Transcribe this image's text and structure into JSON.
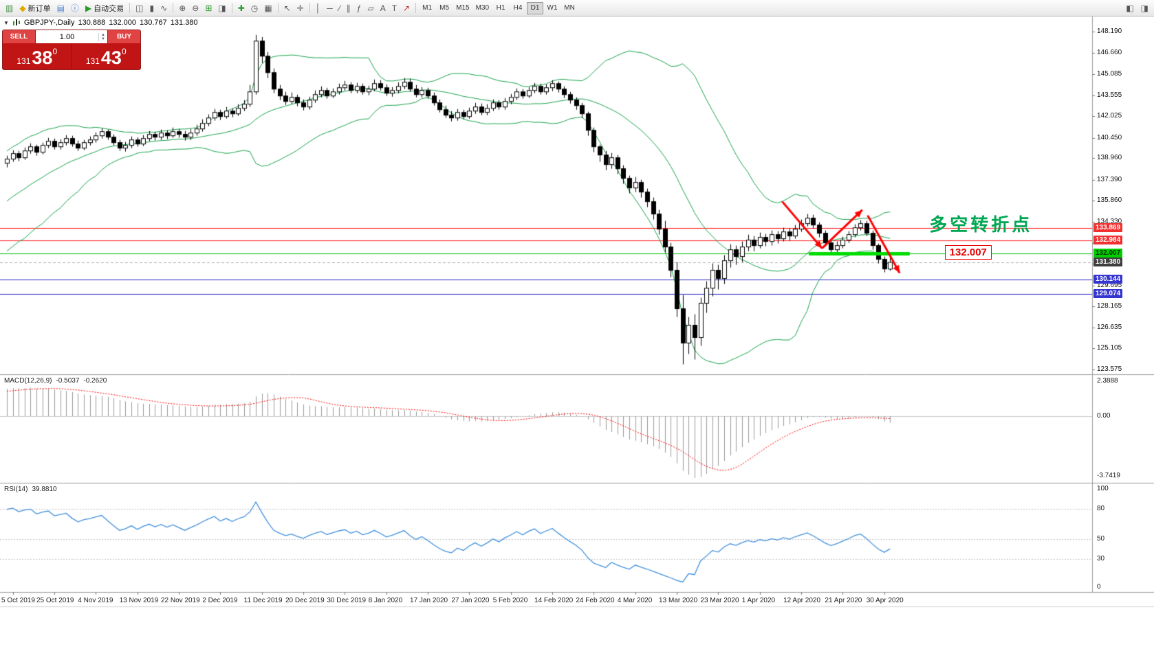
{
  "app": {
    "toolbar": {
      "buttons": [
        {
          "name": "new-chart-button",
          "glyph": "▥",
          "color": "#3f8f3f"
        },
        {
          "name": "new-order-button",
          "glyph": "◆",
          "color": "#e0a800",
          "label": "新订单"
        },
        {
          "name": "profiles-button",
          "glyph": "▤",
          "color": "#4a7fd0"
        },
        {
          "name": "data-window-button",
          "glyph": "ⓘ",
          "color": "#4a7fd0"
        },
        {
          "name": "autotrading-button",
          "glyph": "▶",
          "color": "#2a9a2a",
          "label": "自动交易"
        },
        {
          "sep": true
        },
        {
          "name": "bar-chart-mode-button",
          "glyph": "◫"
        },
        {
          "name": "candlestick-mode-button",
          "glyph": "▮"
        },
        {
          "name": "line-chart-mode-button",
          "glyph": "∿"
        },
        {
          "sep": true
        },
        {
          "name": "zoom-in-button",
          "glyph": "⊕"
        },
        {
          "name": "zoom-out-button",
          "glyph": "⊖"
        },
        {
          "name": "auto-scroll-button",
          "glyph": "⊞",
          "color": "#2a9a2a"
        },
        {
          "name": "chart-shift-button",
          "glyph": "◨"
        },
        {
          "sep": true
        },
        {
          "name": "indicators-button",
          "glyph": "✚",
          "color": "#2a9a2a"
        },
        {
          "name": "periods-button",
          "glyph": "◷"
        },
        {
          "name": "templates-button",
          "glyph": "▦"
        },
        {
          "sep": true
        },
        {
          "name": "cursor-button",
          "glyph": "↖"
        },
        {
          "name": "crosshair-button",
          "glyph": "✛"
        },
        {
          "sep": true
        },
        {
          "name": "vertical-line-button",
          "glyph": "│"
        },
        {
          "name": "horizontal-line-button",
          "glyph": "─"
        },
        {
          "name": "trendline-button",
          "glyph": "∕"
        },
        {
          "name": "channel-button",
          "glyph": "∥"
        },
        {
          "name": "fibonacci-button",
          "glyph": "ƒ"
        },
        {
          "name": "shapes-button",
          "glyph": "▱"
        },
        {
          "name": "text-button",
          "glyph": "A"
        },
        {
          "name": "label-button",
          "glyph": "T"
        },
        {
          "name": "arrows-button",
          "glyph": "↗",
          "color": "#c03030"
        },
        {
          "sep": true
        }
      ],
      "timeframes": {
        "items": [
          "M1",
          "M5",
          "M15",
          "M30",
          "H1",
          "H4",
          "D1",
          "W1",
          "MN"
        ],
        "active": "D1"
      },
      "right_buttons": [
        {
          "name": "search-button",
          "glyph": "◧"
        },
        {
          "name": "window-list-button",
          "glyph": "◨"
        }
      ]
    }
  },
  "chart_header": {
    "collapse_icon": "▼",
    "symbol_period": "GBPJPY-,Daily",
    "open": "130.888",
    "high": "132.000",
    "low": "130.767",
    "close": "131.380"
  },
  "trade_panel": {
    "sell_label": "SELL",
    "buy_label": "BUY",
    "lot_value": "1.00",
    "stepper_up": "▲",
    "stepper_down": "▼",
    "sell_price_prefix": "131",
    "sell_price_big": "38",
    "sell_price_sup": "0",
    "buy_price_prefix": "131",
    "buy_price_big": "43",
    "buy_price_sup": "0"
  },
  "indicators": {
    "macd": {
      "name": "MACD(12,26,9)",
      "value_main": "-0.5037",
      "value_signal": "-0.2620",
      "axis_labels": [
        "2.3888",
        "0.00",
        "-3.7419"
      ]
    },
    "rsi": {
      "name": "RSI(14)",
      "value": "39.8810",
      "levels": [
        80,
        50,
        30
      ],
      "axis_labels": [
        {
          "value": 100,
          "label": "100"
        },
        {
          "value": 80,
          "label": "80"
        },
        {
          "value": 50,
          "label": "50"
        },
        {
          "value": 30,
          "label": "30"
        },
        {
          "value": 0,
          "label": "0"
        }
      ]
    }
  },
  "chart_data": {
    "type": "candlestick",
    "title": "GBPJPY-,Daily",
    "symbol": "GBPJPY",
    "timeframe": "Daily",
    "y_range": [
      123.575,
      148.19
    ],
    "y_axis_labels": [
      "148.190",
      "146.660",
      "145.085",
      "143.555",
      "142.025",
      "140.450",
      "138.960",
      "137.390",
      "135.860",
      "134.330",
      "132.800",
      "131.270",
      "129.695",
      "128.165",
      "126.635",
      "125.105",
      "123.575"
    ],
    "x_axis": {
      "first_bar_index": 1,
      "bar_step": 7,
      "labels": [
        "5 Oct 2019",
        "25 Oct 2019",
        "4 Nov 2019",
        "13 Nov 2019",
        "22 Nov 2019",
        "2 Dec 2019",
        "11 Dec 2019",
        "20 Dec 2019",
        "30 Dec 2019",
        "8 Jan 2020",
        "17 Jan 2020",
        "27 Jan 2020",
        "5 Feb 2020",
        "14 Feb 2020",
        "24 Feb 2020",
        "4 Mar 2020",
        "13 Mar 2020",
        "23 Mar 2020",
        "1 Apr 2020",
        "12 Apr 2020",
        "21 Apr 2020",
        "30 Apr 2020"
      ]
    },
    "pre_closes": [
      129.8,
      130.3,
      129.9,
      130.6,
      131.2,
      130.8,
      131.5,
      132.1,
      131.7,
      132.4,
      133.0,
      132.6,
      133.3,
      133.9,
      133.5,
      134.2,
      134.8,
      134.4,
      135.1,
      135.7,
      135.3,
      136.0,
      136.6,
      136.2,
      136.9,
      137.5,
      137.1,
      137.8,
      138.4,
      138.6
    ],
    "candles": [
      [
        138.6,
        139.15,
        138.3,
        138.9
      ],
      [
        138.9,
        139.55,
        138.7,
        139.3
      ],
      [
        139.3,
        139.5,
        138.75,
        139.0
      ],
      [
        139.0,
        139.75,
        138.85,
        139.5
      ],
      [
        139.5,
        140.05,
        139.3,
        139.8
      ],
      [
        139.8,
        139.95,
        139.15,
        139.4
      ],
      [
        139.4,
        140.1,
        139.25,
        139.9
      ],
      [
        139.9,
        140.45,
        139.7,
        140.2
      ],
      [
        140.2,
        140.4,
        139.6,
        139.8
      ],
      [
        139.8,
        140.35,
        139.6,
        140.1
      ],
      [
        140.1,
        140.65,
        139.9,
        140.4
      ],
      [
        140.4,
        140.6,
        139.8,
        140.0
      ],
      [
        140.0,
        140.25,
        139.5,
        139.7
      ],
      [
        139.7,
        140.3,
        139.55,
        140.1
      ],
      [
        140.1,
        140.55,
        139.9,
        140.3
      ],
      [
        140.3,
        140.85,
        140.1,
        140.6
      ],
      [
        140.6,
        141.15,
        140.4,
        140.9
      ],
      [
        140.9,
        141.05,
        140.3,
        140.5
      ],
      [
        140.5,
        140.7,
        139.9,
        140.1
      ],
      [
        140.1,
        140.3,
        139.5,
        139.7
      ],
      [
        139.7,
        140.15,
        139.45,
        139.9
      ],
      [
        139.9,
        140.55,
        139.7,
        140.3
      ],
      [
        140.3,
        140.5,
        139.8,
        140.0
      ],
      [
        140.0,
        140.65,
        139.85,
        140.4
      ],
      [
        140.4,
        140.95,
        140.2,
        140.7
      ],
      [
        140.7,
        140.9,
        140.25,
        140.5
      ],
      [
        140.5,
        141.05,
        140.3,
        140.8
      ],
      [
        140.8,
        141.0,
        140.35,
        140.6
      ],
      [
        140.6,
        141.2,
        140.45,
        140.9
      ],
      [
        140.9,
        141.1,
        140.45,
        140.7
      ],
      [
        140.7,
        140.95,
        140.25,
        140.5
      ],
      [
        140.5,
        141.1,
        140.3,
        140.8
      ],
      [
        140.8,
        141.4,
        140.6,
        141.1
      ],
      [
        141.1,
        141.8,
        140.9,
        141.5
      ],
      [
        141.5,
        142.15,
        141.3,
        141.9
      ],
      [
        141.9,
        142.55,
        141.7,
        142.3
      ],
      [
        142.3,
        142.5,
        141.75,
        142.0
      ],
      [
        142.0,
        142.7,
        141.85,
        142.4
      ],
      [
        142.4,
        142.6,
        141.95,
        142.2
      ],
      [
        142.2,
        142.9,
        142.05,
        142.6
      ],
      [
        142.6,
        143.2,
        142.4,
        142.9
      ],
      [
        142.9,
        144.3,
        142.7,
        143.8
      ],
      [
        143.8,
        147.95,
        143.6,
        147.5
      ],
      [
        147.5,
        147.8,
        145.9,
        146.4
      ],
      [
        146.4,
        146.7,
        144.8,
        145.2
      ],
      [
        145.2,
        145.5,
        143.7,
        144.0
      ],
      [
        144.0,
        144.3,
        143.2,
        143.5
      ],
      [
        143.5,
        143.8,
        142.85,
        143.1
      ],
      [
        143.1,
        143.75,
        142.9,
        143.4
      ],
      [
        143.4,
        143.6,
        142.75,
        143.0
      ],
      [
        143.0,
        143.25,
        142.45,
        142.7
      ],
      [
        142.7,
        143.45,
        142.5,
        143.2
      ],
      [
        143.2,
        143.9,
        143.0,
        143.6
      ],
      [
        143.6,
        144.2,
        143.4,
        143.9
      ],
      [
        143.9,
        144.1,
        143.3,
        143.5
      ],
      [
        143.5,
        144.05,
        143.35,
        143.8
      ],
      [
        143.8,
        144.4,
        143.6,
        144.1
      ],
      [
        144.1,
        144.6,
        143.9,
        144.3
      ],
      [
        144.3,
        144.5,
        143.7,
        143.9
      ],
      [
        143.9,
        144.45,
        143.7,
        144.2
      ],
      [
        144.2,
        144.4,
        143.6,
        143.8
      ],
      [
        143.8,
        144.25,
        143.55,
        144.0
      ],
      [
        144.0,
        144.7,
        143.85,
        144.4
      ],
      [
        144.4,
        144.65,
        143.9,
        144.1
      ],
      [
        144.1,
        144.35,
        143.5,
        143.7
      ],
      [
        143.7,
        144.15,
        143.45,
        143.9
      ],
      [
        143.9,
        144.5,
        143.7,
        144.2
      ],
      [
        144.2,
        144.8,
        144.0,
        144.5
      ],
      [
        144.5,
        144.75,
        143.8,
        144.0
      ],
      [
        144.0,
        144.3,
        143.4,
        143.6
      ],
      [
        143.6,
        144.15,
        143.4,
        143.9
      ],
      [
        143.9,
        144.1,
        143.3,
        143.5
      ],
      [
        143.5,
        143.75,
        142.8,
        143.0
      ],
      [
        143.0,
        143.25,
        142.3,
        142.5
      ],
      [
        142.5,
        142.8,
        141.9,
        142.1
      ],
      [
        142.1,
        142.4,
        141.65,
        141.9
      ],
      [
        141.9,
        142.55,
        141.7,
        142.3
      ],
      [
        142.3,
        142.5,
        141.8,
        142.0
      ],
      [
        142.0,
        142.65,
        141.85,
        142.4
      ],
      [
        142.4,
        143.0,
        142.2,
        142.7
      ],
      [
        142.7,
        142.95,
        142.1,
        142.3
      ],
      [
        142.3,
        142.9,
        142.1,
        142.6
      ],
      [
        142.6,
        143.25,
        142.4,
        143.0
      ],
      [
        143.0,
        143.2,
        142.5,
        142.7
      ],
      [
        142.7,
        143.35,
        142.5,
        143.1
      ],
      [
        143.1,
        143.65,
        142.9,
        143.4
      ],
      [
        143.4,
        144.05,
        143.2,
        143.8
      ],
      [
        143.8,
        144.0,
        143.3,
        143.5
      ],
      [
        143.5,
        144.15,
        143.35,
        143.9
      ],
      [
        143.9,
        144.45,
        143.7,
        144.2
      ],
      [
        144.2,
        144.4,
        143.6,
        143.8
      ],
      [
        143.8,
        144.35,
        143.6,
        144.1
      ],
      [
        144.1,
        144.65,
        143.85,
        144.4
      ],
      [
        144.4,
        144.55,
        143.75,
        144.0
      ],
      [
        144.0,
        144.2,
        143.35,
        143.6
      ],
      [
        143.6,
        143.8,
        142.95,
        143.2
      ],
      [
        143.2,
        143.4,
        142.5,
        142.8
      ],
      [
        142.8,
        143.0,
        141.9,
        142.2
      ],
      [
        142.2,
        142.35,
        140.6,
        141.0
      ],
      [
        141.0,
        141.2,
        139.4,
        139.8
      ],
      [
        139.8,
        139.95,
        138.7,
        139.2
      ],
      [
        139.2,
        139.5,
        138.1,
        138.5
      ],
      [
        138.5,
        139.35,
        138.2,
        139.0
      ],
      [
        139.0,
        139.2,
        137.8,
        138.2
      ],
      [
        138.2,
        138.45,
        137.1,
        137.5
      ],
      [
        137.5,
        137.7,
        136.4,
        136.8
      ],
      [
        136.8,
        137.6,
        136.5,
        137.2
      ],
      [
        137.2,
        137.4,
        136.1,
        136.5
      ],
      [
        136.5,
        136.75,
        135.4,
        135.8
      ],
      [
        135.8,
        136.1,
        134.5,
        134.9
      ],
      [
        134.9,
        135.2,
        133.4,
        133.8
      ],
      [
        133.8,
        134.4,
        132.1,
        132.5
      ],
      [
        132.5,
        132.8,
        130.3,
        130.8
      ],
      [
        130.8,
        131.4,
        127.4,
        128.0
      ],
      [
        128.0,
        129.0,
        123.95,
        125.5
      ],
      [
        125.5,
        127.4,
        124.7,
        126.8
      ],
      [
        126.8,
        127.6,
        124.3,
        125.9
      ],
      [
        125.9,
        128.8,
        125.3,
        128.4
      ],
      [
        128.4,
        130.0,
        127.7,
        129.5
      ],
      [
        129.5,
        131.3,
        128.9,
        130.8
      ],
      [
        130.8,
        131.2,
        129.4,
        130.2
      ],
      [
        130.2,
        131.9,
        129.8,
        131.5
      ],
      [
        131.5,
        132.7,
        131.0,
        132.3
      ],
      [
        132.3,
        132.6,
        131.2,
        131.8
      ],
      [
        131.8,
        132.9,
        131.4,
        132.5
      ],
      [
        132.5,
        133.4,
        132.2,
        133.0
      ],
      [
        133.0,
        133.3,
        132.2,
        132.6
      ],
      [
        132.6,
        133.55,
        132.4,
        133.2
      ],
      [
        133.2,
        133.45,
        132.55,
        132.9
      ],
      [
        132.9,
        133.7,
        132.6,
        133.4
      ],
      [
        133.4,
        133.65,
        132.75,
        133.1
      ],
      [
        133.1,
        133.9,
        132.9,
        133.6
      ],
      [
        133.6,
        133.85,
        132.95,
        133.3
      ],
      [
        133.3,
        134.1,
        133.1,
        133.8
      ],
      [
        133.8,
        134.5,
        133.6,
        134.2
      ],
      [
        134.2,
        134.9,
        134.0,
        134.6
      ],
      [
        134.6,
        134.85,
        133.85,
        134.1
      ],
      [
        134.1,
        134.3,
        133.2,
        133.5
      ],
      [
        133.5,
        133.7,
        132.55,
        132.8
      ],
      [
        132.8,
        133.0,
        132.05,
        132.3
      ],
      [
        132.3,
        132.9,
        132.1,
        132.6
      ],
      [
        132.6,
        133.25,
        132.4,
        133.0
      ],
      [
        133.0,
        133.65,
        132.8,
        133.4
      ],
      [
        133.4,
        134.15,
        133.2,
        133.9
      ],
      [
        133.9,
        134.45,
        133.7,
        134.2
      ],
      [
        134.2,
        134.4,
        133.3,
        133.5
      ],
      [
        133.5,
        133.7,
        132.3,
        132.6
      ],
      [
        132.6,
        132.75,
        131.3,
        131.6
      ],
      [
        131.6,
        131.8,
        130.65,
        130.9
      ],
      [
        130.888,
        132.0,
        130.767,
        131.38
      ]
    ],
    "bollinger": {
      "period": 20,
      "deviation": 2,
      "color": "#16a34a"
    },
    "h_lines": [
      {
        "price": 133.869,
        "label": "133.869",
        "color": "#ff1a1a",
        "width": 1,
        "tag_bg": "#f23030",
        "tag_fg": "#ffffff"
      },
      {
        "price": 132.984,
        "label": "132.984",
        "color": "#ff1a1a",
        "width": 1,
        "tag_bg": "#f23030",
        "tag_fg": "#ffffff"
      },
      {
        "price": 132.007,
        "label": "132.007",
        "color": "#00c000",
        "width": 1,
        "tag_bg": "#00cc00",
        "tag_fg": "#003300"
      },
      {
        "price": 130.144,
        "label": "130.144",
        "color": "#2828c8",
        "width": 1,
        "tag_bg": "#3434d0",
        "tag_fg": "#ffffff"
      },
      {
        "price": 129.074,
        "label": "129.074",
        "color": "#2828c8",
        "width": 1,
        "tag_bg": "#3434d0",
        "tag_fg": "#ffffff"
      }
    ],
    "current_price": {
      "price": 131.38,
      "label": "131.380",
      "tag_bg": "#3f3f3f",
      "tag_fg": "#ffffff"
    },
    "annotations": {
      "trend_arrows": [
        {
          "from": {
            "bar": 130.8,
            "price": 135.8
          },
          "to": {
            "bar": 137.5,
            "price": 132.4
          }
        },
        {
          "from": {
            "bar": 137.5,
            "price": 132.4
          },
          "to": {
            "bar": 144.3,
            "price": 135.2
          }
        },
        {
          "from": {
            "bar": 145.2,
            "price": 134.8
          },
          "to": {
            "bar": 150.6,
            "price": 130.6
          }
        }
      ],
      "support_segment": {
        "price": 132.007,
        "bar_from": 135.3,
        "bar_to": 152.3,
        "color": "#00dd00",
        "width": 5
      },
      "turning_point_text": {
        "label": "多空转折点",
        "color": "#00a651",
        "bar": 155.6,
        "price": 135.15
      },
      "price_callout": {
        "label": "132.007",
        "color": "#e60000",
        "bar": 158.2,
        "price": 132.62
      }
    },
    "colors": {
      "bull": "#ffffff",
      "bear": "#000000",
      "outline": "#000000",
      "macd_hist": "#999999",
      "macd_signal": "#ff0000",
      "rsi_line": "#3f8fdc",
      "arrow": "#ff0000"
    }
  }
}
